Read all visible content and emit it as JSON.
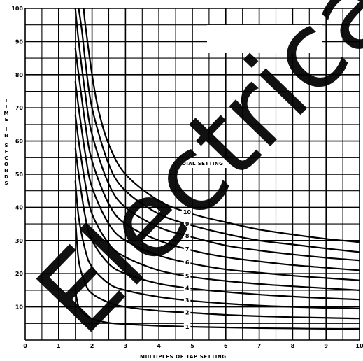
{
  "chart_data": {
    "type": "line",
    "title": "",
    "xlabel": "MULTIPLES OF TAP SETTING",
    "ylabel": "TIME IN SECONDS",
    "xlim": [
      0,
      10
    ],
    "ylim": [
      0,
      100
    ],
    "x_ticks": [
      "0",
      "1",
      "2",
      "3",
      "4",
      "5",
      "6",
      "7",
      "8",
      "9",
      "10"
    ],
    "y_ticks": [
      "10",
      "20",
      "30",
      "40",
      "50",
      "60",
      "70",
      "80",
      "90",
      "100"
    ],
    "grid": true,
    "grid_minor_x": 0.5,
    "grid_minor_y": 5,
    "legend_title": "DIAL SETTING",
    "legend_placement": "center-right, along curves",
    "series": [
      {
        "name": "1",
        "x": [
          1.5,
          1.6,
          1.8,
          2.0,
          2.5,
          3,
          4,
          5,
          6,
          7,
          8,
          9,
          10
        ],
        "y": [
          15,
          10,
          7.6,
          6.4,
          5.2,
          4.8,
          4.3,
          4.0,
          3.8,
          3.6,
          3.5,
          3.4,
          3.4
        ]
      },
      {
        "name": "2",
        "x": [
          1.5,
          1.6,
          1.8,
          2.0,
          2.5,
          3,
          4,
          5,
          6,
          7,
          8,
          9,
          10
        ],
        "y": [
          37,
          24,
          17,
          14,
          11.3,
          10,
          8.8,
          8.2,
          7.6,
          7.2,
          6.9,
          6.7,
          6.5
        ]
      },
      {
        "name": "3",
        "x": [
          1.5,
          1.6,
          1.8,
          2.0,
          2.5,
          3,
          4,
          5,
          6,
          7,
          8,
          9,
          10
        ],
        "y": [
          48,
          37,
          27,
          22,
          17,
          15,
          13,
          11.8,
          11,
          10.4,
          10,
          9.7,
          9.5
        ]
      },
      {
        "name": "4",
        "x": [
          1.5,
          1.6,
          1.8,
          2.0,
          2.5,
          3,
          4,
          5,
          6,
          7,
          8,
          9,
          10
        ],
        "y": [
          58,
          50,
          37,
          30,
          23,
          20,
          17,
          15.5,
          14.5,
          13.7,
          13.1,
          12.6,
          12.2
        ]
      },
      {
        "name": "5",
        "x": [
          1.5,
          1.6,
          1.8,
          2.0,
          2.5,
          3,
          4,
          5,
          6,
          7,
          8,
          9,
          10
        ],
        "y": [
          68,
          60,
          47,
          38,
          29,
          25,
          21,
          19,
          17.8,
          16.9,
          16.2,
          15.6,
          15
        ]
      },
      {
        "name": "6",
        "x": [
          1.5,
          1.6,
          1.8,
          2.0,
          2.5,
          3,
          4,
          5,
          6,
          7,
          8,
          9,
          10
        ],
        "y": [
          78,
          70,
          56,
          46,
          35,
          30,
          25.5,
          23,
          21.3,
          20.3,
          19.4,
          18.7,
          18
        ]
      },
      {
        "name": "7",
        "x": [
          1.5,
          1.6,
          1.8,
          2.0,
          2.5,
          3,
          4,
          5,
          6,
          7,
          8,
          9,
          10
        ],
        "y": [
          88,
          80,
          65,
          54,
          41,
          35,
          30,
          27,
          25,
          23.7,
          22.6,
          21.8,
          21
        ]
      },
      {
        "name": "8",
        "x": [
          1.5,
          1.6,
          1.8,
          2.0,
          2.5,
          3,
          4,
          5,
          6,
          7,
          8,
          9,
          10
        ],
        "y": [
          100,
          90,
          74,
          62,
          47,
          40,
          34,
          31,
          28.5,
          27,
          25.8,
          24.8,
          24
        ]
      },
      {
        "name": "9",
        "x": [
          1.6,
          1.7,
          1.8,
          2.0,
          2.5,
          3,
          4,
          5,
          6,
          7,
          8,
          9,
          10
        ],
        "y": [
          100,
          93,
          84,
          70,
          53,
          45,
          38,
          34.5,
          32,
          30,
          28.8,
          27.6,
          26.5
        ]
      },
      {
        "name": "10",
        "x": [
          1.75,
          1.8,
          2.0,
          2.2,
          2.5,
          3,
          4,
          5,
          6,
          7,
          8,
          9,
          10
        ],
        "y": [
          100,
          95,
          80,
          69,
          59,
          50,
          42,
          38,
          35.5,
          33.3,
          31.8,
          30.5,
          29.5
        ]
      }
    ]
  },
  "watermark": "Electrical",
  "colors": {
    "ink": "#000000",
    "paper": "#ffffff"
  }
}
